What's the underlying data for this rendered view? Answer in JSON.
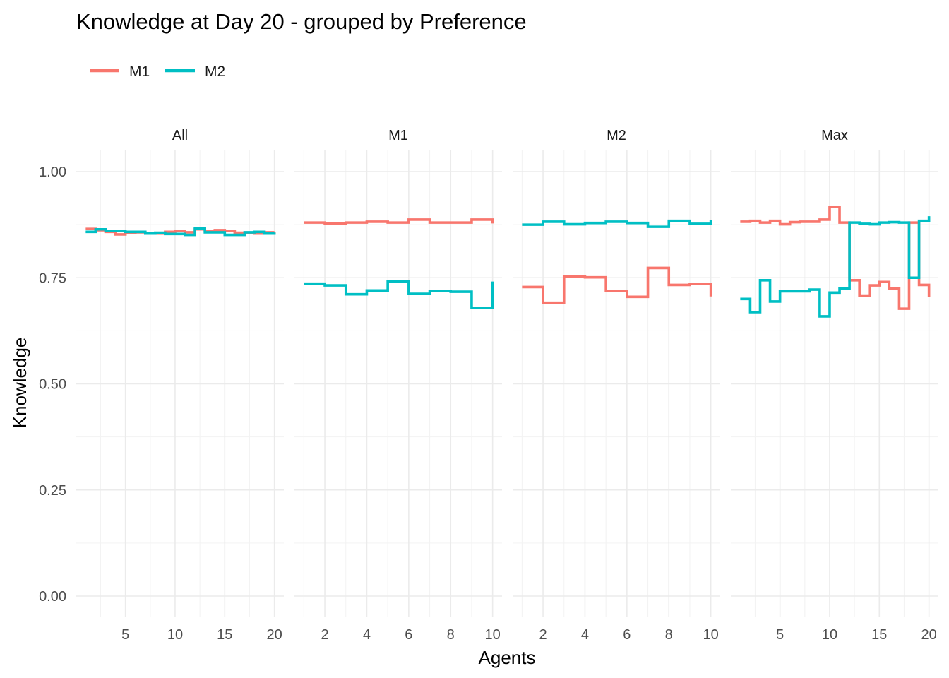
{
  "chart_data": {
    "type": "line",
    "step": "hv",
    "title": "Knowledge at Day 20 - grouped by Preference",
    "xlabel": "Agents",
    "ylabel": "Knowledge",
    "ylim": [
      0,
      1
    ],
    "yticks": [
      0,
      0.25,
      0.5,
      0.75,
      1
    ],
    "ytick_labels": [
      "0.00",
      "0.25",
      "0.50",
      "0.75",
      "1.00"
    ],
    "grid": true,
    "legend": {
      "position": "top-left",
      "entries": [
        {
          "name": "M1",
          "color": "#F8766D"
        },
        {
          "name": "M2",
          "color": "#00BFC4"
        }
      ]
    },
    "facets": [
      {
        "label": "All",
        "xlim": [
          1,
          20
        ],
        "xticks": [
          5,
          10,
          15,
          20
        ],
        "series": [
          {
            "name": "M1",
            "x": [
              1,
              2,
              3,
              4,
              5,
              6,
              7,
              8,
              9,
              10,
              11,
              12,
              13,
              14,
              15,
              16,
              17,
              18,
              19,
              20
            ],
            "y": [
              0.865,
              0.862,
              0.858,
              0.852,
              0.856,
              0.857,
              0.855,
              0.854,
              0.858,
              0.86,
              0.857,
              0.864,
              0.86,
              0.862,
              0.86,
              0.856,
              0.855,
              0.854,
              0.857,
              0.858
            ]
          },
          {
            "name": "M2",
            "x": [
              1,
              2,
              3,
              4,
              5,
              6,
              7,
              8,
              9,
              10,
              11,
              12,
              13,
              14,
              15,
              16,
              17,
              18,
              19,
              20
            ],
            "y": [
              0.858,
              0.864,
              0.86,
              0.86,
              0.858,
              0.858,
              0.854,
              0.856,
              0.853,
              0.853,
              0.851,
              0.866,
              0.857,
              0.857,
              0.851,
              0.851,
              0.857,
              0.858,
              0.854,
              0.856
            ]
          }
        ]
      },
      {
        "label": "M1",
        "xlim": [
          1,
          10
        ],
        "xticks": [
          2,
          4,
          6,
          8,
          10
        ],
        "series": [
          {
            "name": "M1",
            "x": [
              1,
              2,
              3,
              4,
              5,
              6,
              7,
              8,
              9,
              10
            ],
            "y": [
              0.88,
              0.878,
              0.88,
              0.882,
              0.88,
              0.887,
              0.88,
              0.88,
              0.887,
              0.878
            ]
          },
          {
            "name": "M2",
            "x": [
              1,
              2,
              3,
              4,
              5,
              6,
              7,
              8,
              9,
              10
            ],
            "y": [
              0.736,
              0.732,
              0.711,
              0.72,
              0.741,
              0.712,
              0.719,
              0.717,
              0.679,
              0.741
            ]
          }
        ]
      },
      {
        "label": "M2",
        "xlim": [
          1,
          10
        ],
        "xticks": [
          2,
          4,
          6,
          8,
          10
        ],
        "series": [
          {
            "name": "M1",
            "x": [
              1,
              2,
              3,
              4,
              5,
              6,
              7,
              8,
              9,
              10
            ],
            "y": [
              0.728,
              0.691,
              0.753,
              0.751,
              0.719,
              0.705,
              0.773,
              0.733,
              0.735,
              0.706
            ]
          },
          {
            "name": "M2",
            "x": [
              1,
              2,
              3,
              4,
              5,
              6,
              7,
              8,
              9,
              10
            ],
            "y": [
              0.875,
              0.882,
              0.876,
              0.879,
              0.882,
              0.879,
              0.87,
              0.884,
              0.877,
              0.886
            ]
          }
        ]
      },
      {
        "label": "Max",
        "xlim": [
          1,
          20
        ],
        "xticks": [
          5,
          10,
          15,
          20
        ],
        "series": [
          {
            "name": "M1",
            "x": [
              1,
              2,
              3,
              4,
              5,
              6,
              7,
              8,
              9,
              10,
              11,
              12,
              13,
              14,
              15,
              16,
              17,
              18,
              19,
              20
            ],
            "y": [
              0.882,
              0.884,
              0.88,
              0.884,
              0.876,
              0.881,
              0.882,
              0.882,
              0.887,
              0.917,
              0.88,
              0.744,
              0.708,
              0.732,
              0.74,
              0.725,
              0.677,
              0.88,
              0.733,
              0.705
            ]
          },
          {
            "name": "M2",
            "x": [
              1,
              2,
              3,
              4,
              5,
              6,
              7,
              8,
              9,
              10,
              11,
              12,
              13,
              14,
              15,
              16,
              17,
              18,
              19,
              20
            ],
            "y": [
              0.7,
              0.669,
              0.744,
              0.694,
              0.718,
              0.718,
              0.718,
              0.722,
              0.659,
              0.715,
              0.725,
              0.88,
              0.877,
              0.876,
              0.88,
              0.881,
              0.88,
              0.75,
              0.884,
              0.895
            ]
          }
        ]
      }
    ]
  }
}
